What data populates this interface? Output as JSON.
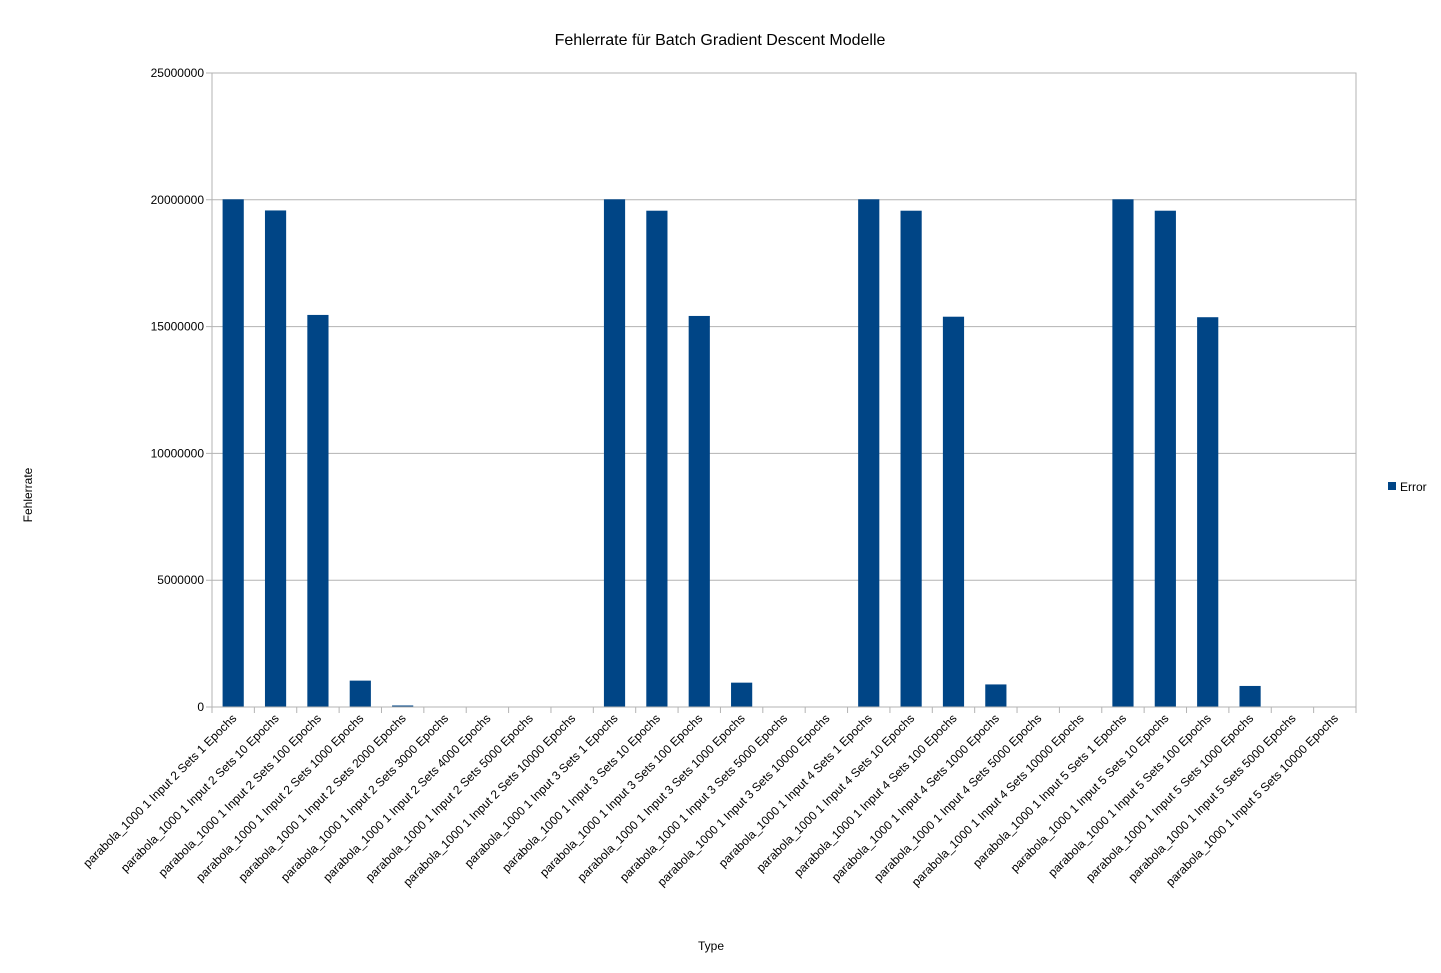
{
  "chart_data": {
    "type": "bar",
    "title": "Fehlerrate für Batch Gradient Descent Modelle",
    "xlabel": "Type",
    "ylabel": "Fehlerrate",
    "ylim": [
      0,
      25000000
    ],
    "yticks": [
      "0",
      "5000000",
      "10000000",
      "15000000",
      "20000000",
      "25000000"
    ],
    "grid": true,
    "legend_position": "right",
    "bar_color": "#004586",
    "categories": [
      "parabola_1000 1 Input 2 Sets 1 Epochs",
      "parabola_1000 1 Input 2 Sets 10 Epochs",
      "parabola_1000 1 Input 2 Sets 100 Epochs",
      "parabola_1000 1 Input 2 Sets 1000 Epochs",
      "parabola_1000 1 Input 2 Sets 2000 Epochs",
      "parabola_1000 1 Input 2 Sets 3000 Epochs",
      "parabola_1000 1 Input 2 Sets 4000 Epochs",
      "parabola_1000 1 Input 2 Sets 5000 Epochs",
      "parabola_1000 1 Input 2 Sets 10000 Epochs",
      "parabola_1000 1 Input 3 Sets 1 Epochs",
      "parabola_1000 1 Input 3 Sets 10 Epochs",
      "parabola_1000 1 Input 3 Sets 100 Epochs",
      "parabola_1000 1 Input 3 Sets 1000 Epochs",
      "parabola_1000 1 Input 3 Sets 5000 Epochs",
      "parabola_1000 1 Input 3 Sets 10000 Epochs",
      "parabola_1000 1 Input 4 Sets 1 Epochs",
      "parabola_1000 1 Input 4 Sets 10 Epochs",
      "parabola_1000 1 Input 4 Sets 100 Epochs",
      "parabola_1000 1 Input 4 Sets 1000 Epochs",
      "parabola_1000 1 Input 4 Sets 5000 Epochs",
      "parabola_1000 1 Input 4 Sets 10000 Epochs",
      "parabola_1000 1 Input 5 Sets 1 Epochs",
      "parabola_1000 1 Input 5 Sets 10 Epochs",
      "parabola_1000 1 Input 5 Sets 100 Epochs",
      "parabola_1000 1 Input 5 Sets 1000 Epochs",
      "parabola_1000 1 Input 5 Sets 5000 Epochs",
      "parabola_1000 1 Input 5 Sets 10000 Epochs"
    ],
    "series": [
      {
        "name": "Error",
        "values": [
          20020000,
          19580000,
          15460000,
          1040000,
          60000,
          5000,
          0,
          0,
          0,
          20020000,
          19570000,
          15420000,
          960000,
          0,
          0,
          20020000,
          19570000,
          15390000,
          890000,
          0,
          0,
          20020000,
          19570000,
          15370000,
          830000,
          0,
          0
        ]
      }
    ]
  }
}
